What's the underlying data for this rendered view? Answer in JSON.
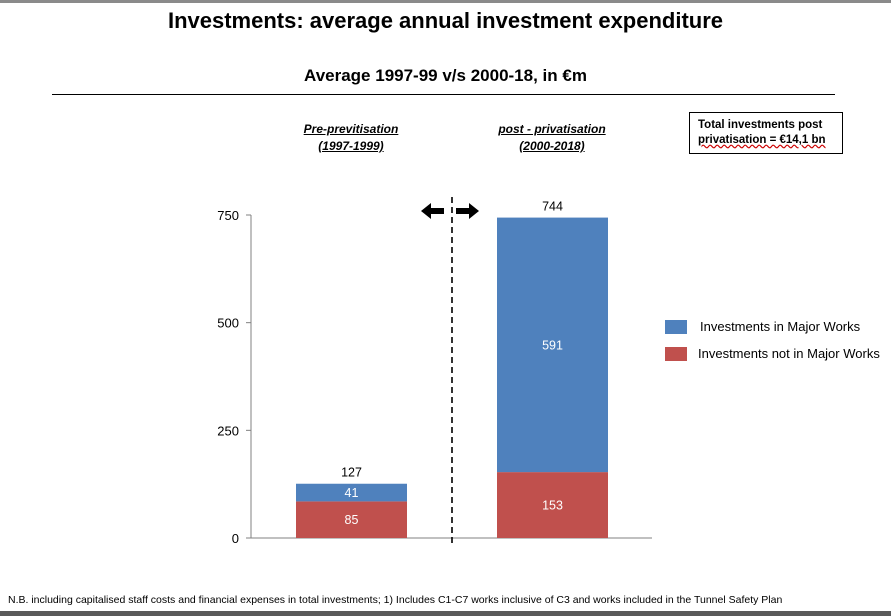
{
  "title": "Investments: average annual investment expenditure",
  "subtitle": "Average 1997-99 v/s 2000-18, in €m",
  "periods": [
    {
      "line1": "Pre-previtisation",
      "line2": "(1997-1999)"
    },
    {
      "line1": "post - privatisation",
      "line2": "(2000-2018)"
    }
  ],
  "note": {
    "line1": "Total investments post",
    "line2": "privatisation = €14,1 bn"
  },
  "footnote": "N.B. including capitalised staff costs and financial expenses in total investments; 1) Includes C1-C7 works inclusive of C3 and works included in the Tunnel Safety Plan",
  "colors": {
    "major": "#4f81bd",
    "not_major": "#c0504d"
  },
  "chart_data": {
    "type": "bar",
    "stacked": true,
    "categories": [
      "Pre-previtisation (1997-1999)",
      "post - privatisation (2000-2018)"
    ],
    "series": [
      {
        "name": "Investments not in Major Works",
        "values": [
          85,
          153
        ]
      },
      {
        "name": "Investments in Major Works",
        "values": [
          41,
          591
        ]
      }
    ],
    "totals": [
      127,
      744
    ],
    "ylim": [
      0,
      750
    ],
    "yticks": [
      0,
      250,
      500,
      750
    ],
    "grid": false,
    "legend": "right"
  }
}
